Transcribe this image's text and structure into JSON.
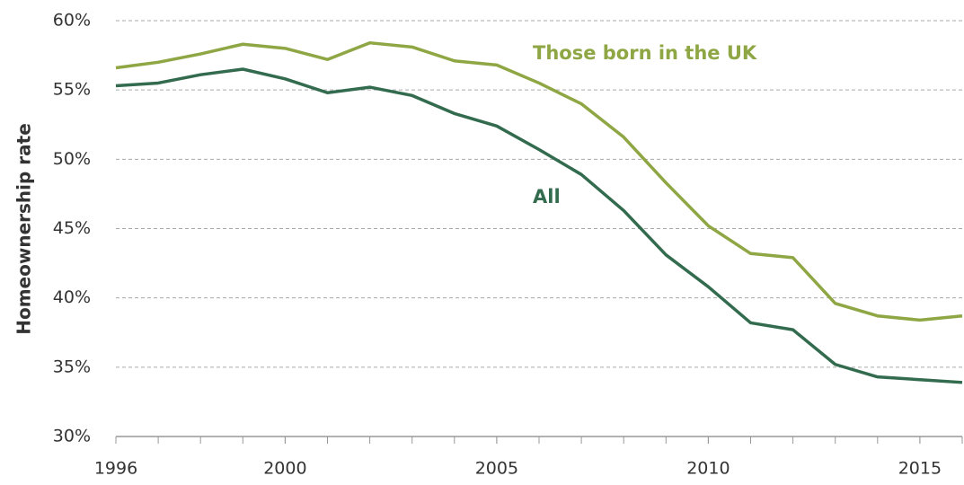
{
  "chart_data": {
    "type": "line",
    "y_label": "Homeownership rate",
    "x": [
      1996,
      1997,
      1998,
      1999,
      2000,
      2001,
      2002,
      2003,
      2004,
      2005,
      2006,
      2007,
      2008,
      2009,
      2010,
      2011,
      2012,
      2013,
      2014,
      2015,
      2016
    ],
    "series": [
      {
        "name": "Those born in the UK",
        "color": "#8fa644",
        "values": [
          56.6,
          57.0,
          57.6,
          58.3,
          58.0,
          57.2,
          58.4,
          58.1,
          57.1,
          56.8,
          55.5,
          54.0,
          51.6,
          48.3,
          45.2,
          43.2,
          42.9,
          39.6,
          38.7,
          38.4,
          38.7
        ]
      },
      {
        "name": "All",
        "color": "#336b4f",
        "values": [
          55.3,
          55.5,
          56.1,
          56.5,
          55.8,
          54.8,
          55.2,
          54.6,
          53.3,
          52.4,
          50.7,
          48.9,
          46.3,
          43.1,
          40.8,
          38.2,
          37.7,
          35.2,
          34.3,
          34.1,
          33.9
        ]
      }
    ],
    "xlim": [
      1996,
      2016
    ],
    "xticks": [
      1996,
      2000,
      2005,
      2010,
      2015
    ],
    "ylim": [
      30,
      60
    ],
    "yticks": [
      {
        "value": 30,
        "label": "30%"
      },
      {
        "value": 35,
        "label": "35%"
      },
      {
        "value": 40,
        "label": "40%"
      },
      {
        "value": 45,
        "label": "45%"
      },
      {
        "value": 50,
        "label": "50%"
      },
      {
        "value": 55,
        "label": "55%"
      },
      {
        "value": 60,
        "label": "60%"
      }
    ],
    "grid": true
  }
}
